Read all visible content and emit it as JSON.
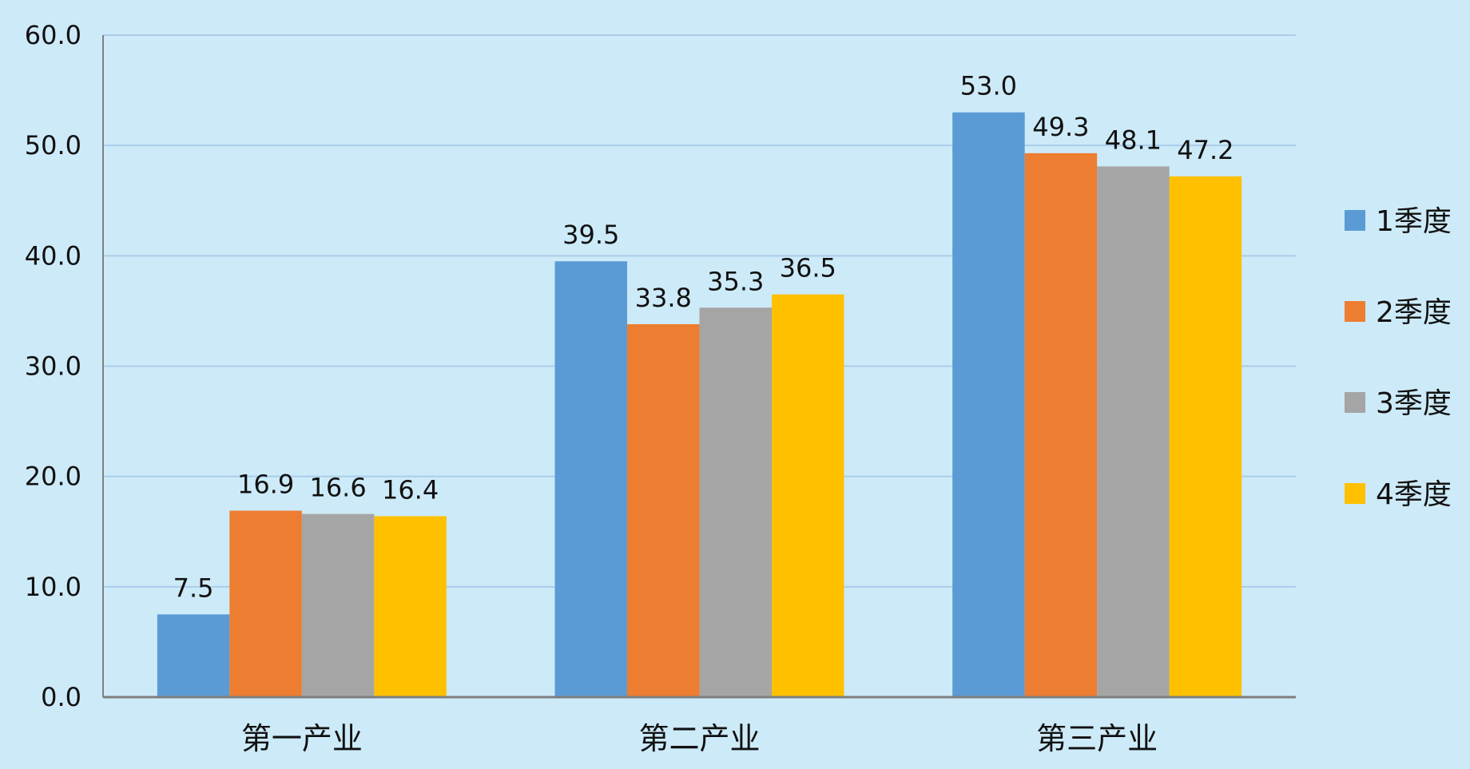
{
  "chart_data": {
    "type": "bar",
    "categories": [
      "第一产业",
      "第二产业",
      "第三产业"
    ],
    "series": [
      {
        "name": "1季度",
        "color": "#5b9bd5",
        "values": [
          7.5,
          39.5,
          53.0
        ]
      },
      {
        "name": "2季度",
        "color": "#ed7d31",
        "values": [
          16.9,
          33.8,
          49.3
        ]
      },
      {
        "name": "3季度",
        "color": "#a5a5a5",
        "values": [
          16.6,
          35.3,
          48.1
        ]
      },
      {
        "name": "4季度",
        "color": "#ffc000",
        "values": [
          16.4,
          36.5,
          47.2
        ]
      }
    ],
    "yticks": [
      "0.0",
      "10.0",
      "20.0",
      "30.0",
      "40.0",
      "50.0",
      "60.0"
    ],
    "ylim": [
      0,
      60
    ],
    "grid": true,
    "legend_position": "right",
    "colors": {
      "background": "#cdeaf8",
      "gridline": "#a9cdea",
      "axis": "#7f7f7f"
    }
  }
}
